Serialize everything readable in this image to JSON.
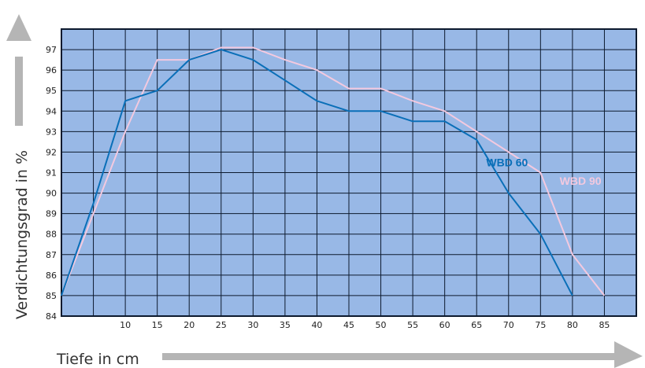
{
  "chart_data": {
    "type": "line",
    "xlabel": "Tiefe in cm",
    "ylabel": "Verdichtungsgrad in %",
    "xlim": [
      0,
      90
    ],
    "ylim": [
      84,
      98
    ],
    "x_ticks": [
      10,
      15,
      20,
      25,
      30,
      35,
      40,
      45,
      50,
      55,
      60,
      65,
      70,
      75,
      80,
      85
    ],
    "y_ticks": [
      84,
      85,
      86,
      87,
      88,
      89,
      90,
      91,
      92,
      93,
      94,
      95,
      96,
      97
    ],
    "grid": true,
    "series": [
      {
        "name": "WBD 60",
        "color": "#0a6fb8",
        "points": [
          [
            0,
            85
          ],
          [
            5,
            89.5
          ],
          [
            10,
            94.5
          ],
          [
            15,
            95
          ],
          [
            20,
            96.5
          ],
          [
            25,
            97
          ],
          [
            30,
            96.5
          ],
          [
            35,
            95.5
          ],
          [
            40,
            94.5
          ],
          [
            45,
            94
          ],
          [
            50,
            94
          ],
          [
            55,
            93.5
          ],
          [
            60,
            93.5
          ],
          [
            65,
            92.6
          ],
          [
            70,
            90
          ],
          [
            75,
            88
          ],
          [
            80,
            85
          ]
        ]
      },
      {
        "name": "WBD 90",
        "color": "#f3c9df",
        "points": [
          [
            0,
            85
          ],
          [
            5,
            89
          ],
          [
            10,
            93
          ],
          [
            15,
            96.5
          ],
          [
            20,
            96.5
          ],
          [
            25,
            97.1
          ],
          [
            30,
            97.1
          ],
          [
            35,
            96.5
          ],
          [
            40,
            96
          ],
          [
            45,
            95.1
          ],
          [
            50,
            95.1
          ],
          [
            55,
            94.5
          ],
          [
            60,
            94
          ],
          [
            65,
            93
          ],
          [
            70,
            92
          ],
          [
            75,
            91
          ],
          [
            80,
            87
          ],
          [
            85,
            85
          ]
        ]
      }
    ],
    "annotations": [
      {
        "text": "WBD 60",
        "x": 66.5,
        "y": 91.3,
        "color": "#0a6fb8"
      },
      {
        "text": "WBD 90",
        "x": 78,
        "y": 90.4,
        "color": "#f3c9df"
      }
    ],
    "colors": {
      "plot_background": "#98b8e6",
      "grid": "#0d1a2e",
      "axis_arrow": "#b5b5b5"
    }
  }
}
